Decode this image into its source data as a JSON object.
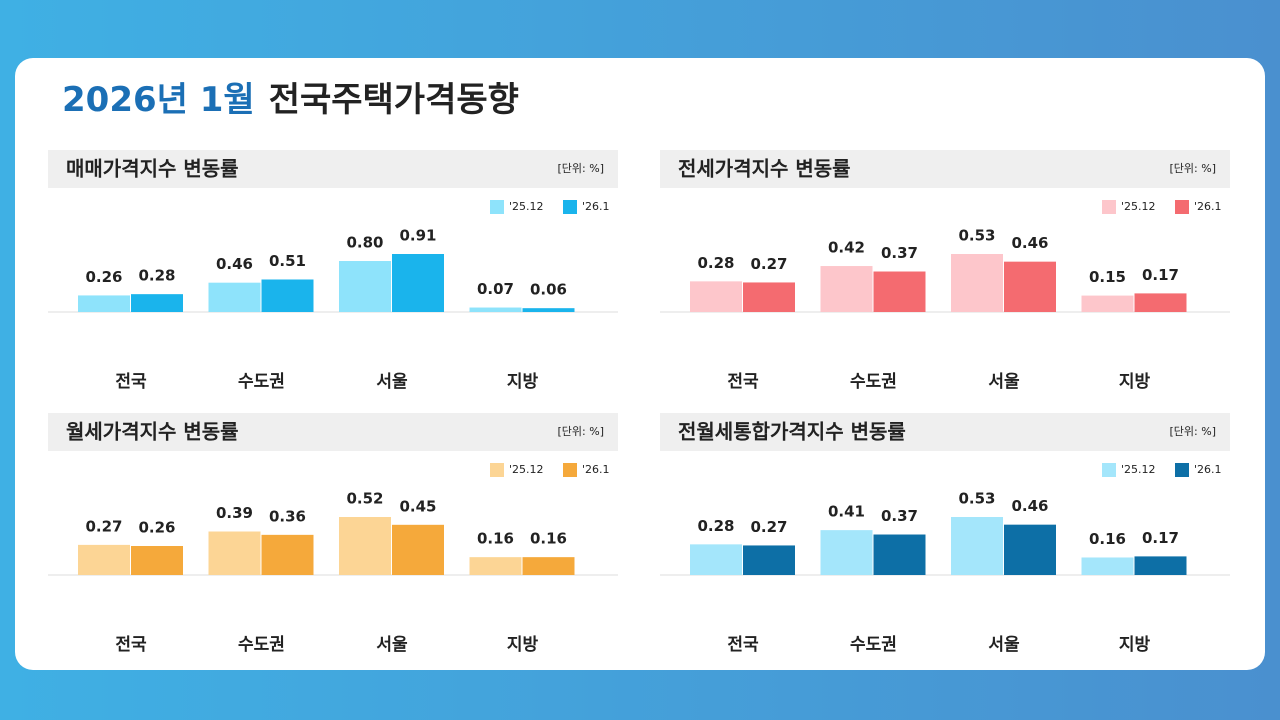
{
  "header": {
    "highlight": "2026년 1월",
    "title": "전국주택가격동향"
  },
  "chart_data": [
    {
      "type": "bar",
      "title": "매매가격지수 변동률",
      "unit": "[단위: %]",
      "categories": [
        "전국",
        "수도권",
        "서울",
        "지방"
      ],
      "series": [
        {
          "name": "'25.12",
          "color": "#8ee3fb",
          "values": [
            0.26,
            0.46,
            0.8,
            0.07
          ],
          "value_labels": [
            "0.26",
            "0.46",
            "0.80",
            "0.07"
          ]
        },
        {
          "name": "'26.1",
          "color": "#1ab4ec",
          "values": [
            0.28,
            0.51,
            0.91,
            0.06
          ],
          "value_labels": [
            "0.28",
            "0.51",
            "0.91",
            "0.06"
          ]
        }
      ]
    },
    {
      "type": "bar",
      "title": "전세가격지수 변동률",
      "unit": "[단위: %]",
      "categories": [
        "전국",
        "수도권",
        "서울",
        "지방"
      ],
      "series": [
        {
          "name": "'25.12",
          "color": "#fdc6cb",
          "values": [
            0.28,
            0.42,
            0.53,
            0.15
          ],
          "value_labels": [
            "0.28",
            "0.42",
            "0.53",
            "0.15"
          ]
        },
        {
          "name": "'26.1",
          "color": "#f46b70",
          "values": [
            0.27,
            0.37,
            0.46,
            0.17
          ],
          "value_labels": [
            "0.27",
            "0.37",
            "0.46",
            "0.17"
          ]
        }
      ]
    },
    {
      "type": "bar",
      "title": "월세가격지수 변동률",
      "unit": "[단위: %]",
      "categories": [
        "전국",
        "수도권",
        "서울",
        "지방"
      ],
      "series": [
        {
          "name": "'25.12",
          "color": "#fcd595",
          "values": [
            0.27,
            0.39,
            0.52,
            0.16
          ],
          "value_labels": [
            "0.27",
            "0.39",
            "0.52",
            "0.16"
          ]
        },
        {
          "name": "'26.1",
          "color": "#f5a93b",
          "values": [
            0.26,
            0.36,
            0.45,
            0.16
          ],
          "value_labels": [
            "0.26",
            "0.36",
            "0.45",
            "0.16"
          ]
        }
      ]
    },
    {
      "type": "bar",
      "title": "전월세통합가격지수 변동률",
      "unit": "[단위: %]",
      "categories": [
        "전국",
        "수도권",
        "서울",
        "지방"
      ],
      "series": [
        {
          "name": "'25.12",
          "color": "#a4e6fb",
          "values": [
            0.28,
            0.41,
            0.53,
            0.16
          ],
          "value_labels": [
            "0.28",
            "0.41",
            "0.53",
            "0.16"
          ]
        },
        {
          "name": "'26.1",
          "color": "#0d6fa6",
          "values": [
            0.27,
            0.37,
            0.46,
            0.17
          ],
          "value_labels": [
            "0.27",
            "0.37",
            "0.46",
            "0.17"
          ]
        }
      ]
    }
  ]
}
